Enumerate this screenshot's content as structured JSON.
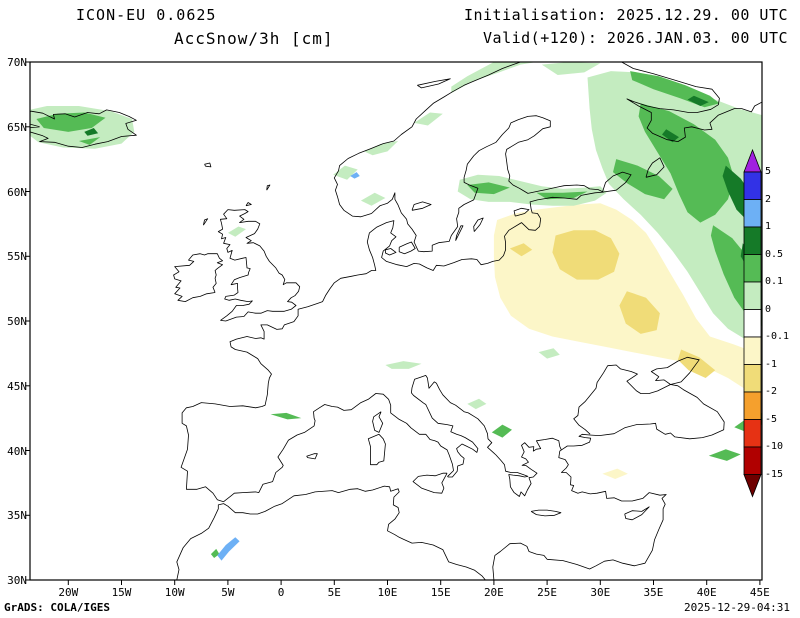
{
  "header": {
    "model": "ICON-EU 0.0625",
    "parameter": "AccSnow/3h [cm]",
    "initialisation": "Initialisation: 2025.12.29. 00 UTC",
    "valid": "Valid(+120): 2026.JAN.03. 00 UTC"
  },
  "axes": {
    "x_tick_labels": [
      "20W",
      "15W",
      "10W",
      "5W",
      "0",
      "5E",
      "10E",
      "15E",
      "20E",
      "25E",
      "30E",
      "35E",
      "40E",
      "45E"
    ],
    "y_tick_labels": [
      "70N",
      "65N",
      "60N",
      "55N",
      "50N",
      "45N",
      "40N",
      "35N",
      "30N"
    ]
  },
  "colorbar": {
    "tick_labels": [
      "5",
      "2",
      "1",
      "0.5",
      "0.1",
      "0",
      "-0.1",
      "-1",
      "-2",
      "-5",
      "-10",
      "-15"
    ],
    "colors_top_to_bottom": [
      "#a020df",
      "#3232e6",
      "#6db0f5",
      "#157a28",
      "#55bb55",
      "#c4ecc0",
      "#ffffff",
      "#fcf6c8",
      "#f0dc78",
      "#f5a02d",
      "#e63214",
      "#b00000",
      "#6e0000"
    ]
  },
  "shading_summary": [
    "light to moderate snow accumulation (greens) over Iceland, coastal Norway, northern Scandinavia, the Baltic and north-western Russia",
    "heaviest accumulation (dark green) over north-east Russia near the White Sea and upper Volga",
    "slight snow-depth decrease (cream/yellow) over the Baltic states, Belarus and western Russia",
    "small patches over the Pyrenees, Alps, Balkans, eastern Turkey, the Caucasus and the Moroccan Atlas"
  ],
  "footer": {
    "credit": "GrADS: COLA/IGES",
    "timestamp": "2025-12-29-04:31"
  }
}
